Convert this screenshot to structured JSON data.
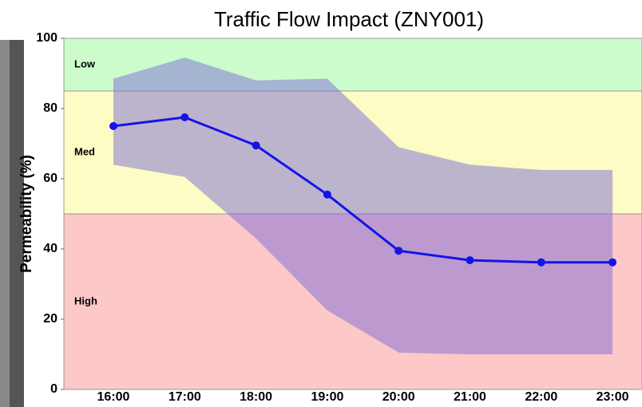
{
  "chart_data": {
    "type": "line",
    "title": "Traffic Flow Impact (ZNY001)",
    "y_label": "Permeability (%)",
    "categories": [
      "16:00",
      "17:00",
      "18:00",
      "19:00",
      "20:00",
      "21:00",
      "22:00",
      "23:00"
    ],
    "series": [
      {
        "color": "#1414e6",
        "values": [
          75,
          77.5,
          69.5,
          55.5,
          39.5,
          36.8,
          36.2,
          36.2
        ]
      }
    ],
    "band": {
      "color": "#7c6cd6",
      "upper": [
        88.5,
        94.5,
        88,
        88.5,
        69,
        64,
        62.5,
        62.5
      ],
      "lower": [
        64,
        60.5,
        43,
        22.5,
        10.5,
        10,
        10,
        10
      ]
    },
    "zones": [
      {
        "label": "Low",
        "from": 85,
        "to": 100,
        "color": "#ccfccc"
      },
      {
        "label": "Med",
        "from": 50,
        "to": 85,
        "color": "#fcfcc4"
      },
      {
        "label": "High",
        "from": 0,
        "to": 50,
        "color": "#fcc8c8"
      }
    ],
    "ylim": [
      0,
      100
    ],
    "yticks": [
      0,
      20,
      40,
      60,
      80,
      100
    ]
  }
}
